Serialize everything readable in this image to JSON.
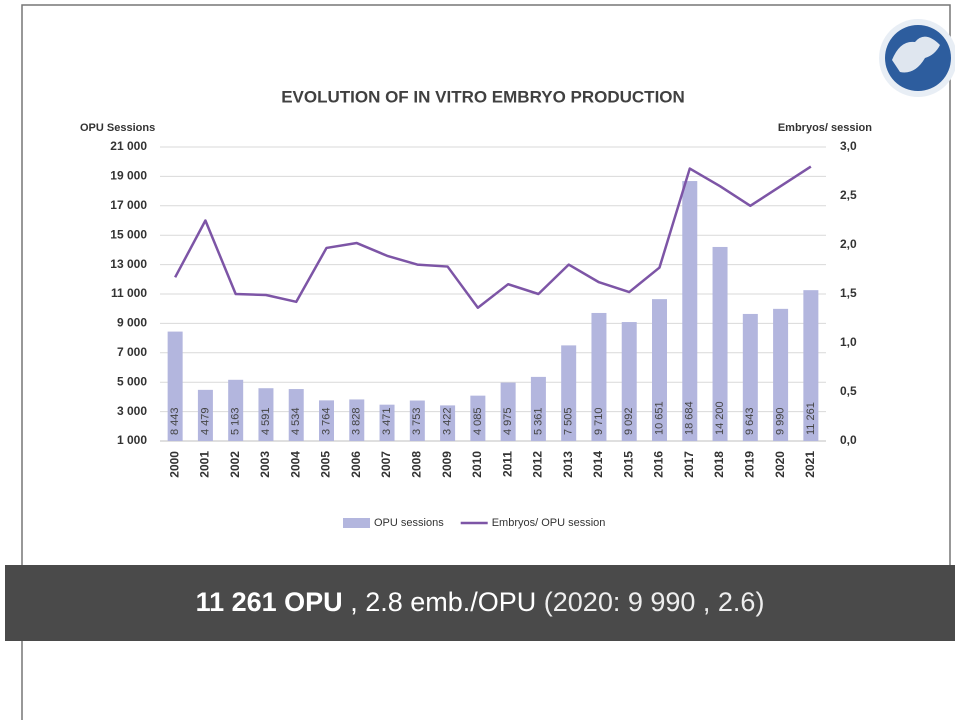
{
  "chart_data": {
    "type": "bar_line",
    "title": "EVOLUTION OF IN VITRO EMBRYO PRODUCTION",
    "y_label": "OPU Sessions",
    "y2_label": "Embryos/ session",
    "categories": [
      "2000",
      "2001",
      "2002",
      "2003",
      "2004",
      "2005",
      "2006",
      "2007",
      "2008",
      "2009",
      "2010",
      "2011",
      "2012",
      "2013",
      "2014",
      "2015",
      "2016",
      "2017",
      "2018",
      "2019",
      "2020",
      "2021"
    ],
    "series": [
      {
        "name": "OPU sessions",
        "type": "bar",
        "color": "#b3b6de",
        "values": [
          8443,
          4479,
          5163,
          4591,
          4534,
          3764,
          3828,
          3471,
          3753,
          3422,
          4085,
          4975,
          5361,
          7505,
          9710,
          9092,
          10651,
          18684,
          14200,
          9643,
          9990,
          11261
        ],
        "value_labels": [
          "8 443",
          "4 479",
          "5 163",
          "4 591",
          "4 534",
          "3 764",
          "3 828",
          "3 471",
          "3 753",
          "3 422",
          "4 085",
          "4 975",
          "5 361",
          "7 505",
          "9 710",
          "9 092",
          "10 651",
          "18 684",
          "14 200",
          "9 643",
          "9 990",
          "11 261"
        ]
      },
      {
        "name": "Embryos/ OPU session",
        "type": "line",
        "color": "#7d55a6",
        "axis": "y2",
        "values": [
          1.67,
          2.25,
          1.5,
          1.49,
          1.42,
          1.97,
          2.02,
          1.89,
          1.8,
          1.78,
          1.36,
          1.6,
          1.5,
          1.8,
          1.62,
          1.52,
          1.77,
          2.78,
          2.6,
          2.4,
          2.6,
          2.8
        ]
      }
    ],
    "ylim": [
      1000,
      21000
    ],
    "yticks": [
      {
        "value": 1000,
        "label": "1 000"
      },
      {
        "value": 3000,
        "label": "3 000"
      },
      {
        "value": 5000,
        "label": "5 000"
      },
      {
        "value": 7000,
        "label": "7 000"
      },
      {
        "value": 9000,
        "label": "9 000"
      },
      {
        "value": 11000,
        "label": "11 000"
      },
      {
        "value": 13000,
        "label": "13 000"
      },
      {
        "value": 15000,
        "label": "15 000"
      },
      {
        "value": 17000,
        "label": "17 000"
      },
      {
        "value": 19000,
        "label": "19 000"
      },
      {
        "value": 21000,
        "label": "21 000"
      }
    ],
    "y2lim": [
      0,
      3
    ],
    "y2ticks": [
      {
        "value": 0,
        "label": "0,0"
      },
      {
        "value": 0.5,
        "label": "0,5"
      },
      {
        "value": 1,
        "label": "1,0"
      },
      {
        "value": 1.5,
        "label": "1,5"
      },
      {
        "value": 2,
        "label": "2,0"
      },
      {
        "value": 2.5,
        "label": "2,5"
      },
      {
        "value": 3,
        "label": "3,0"
      }
    ],
    "grid": true,
    "legend": "bottom"
  },
  "banner": {
    "bold": "11 261 OPU",
    "rest": ", 2.8 emb./OPU",
    "light": "(2020: 9 990 , 2.6)"
  }
}
